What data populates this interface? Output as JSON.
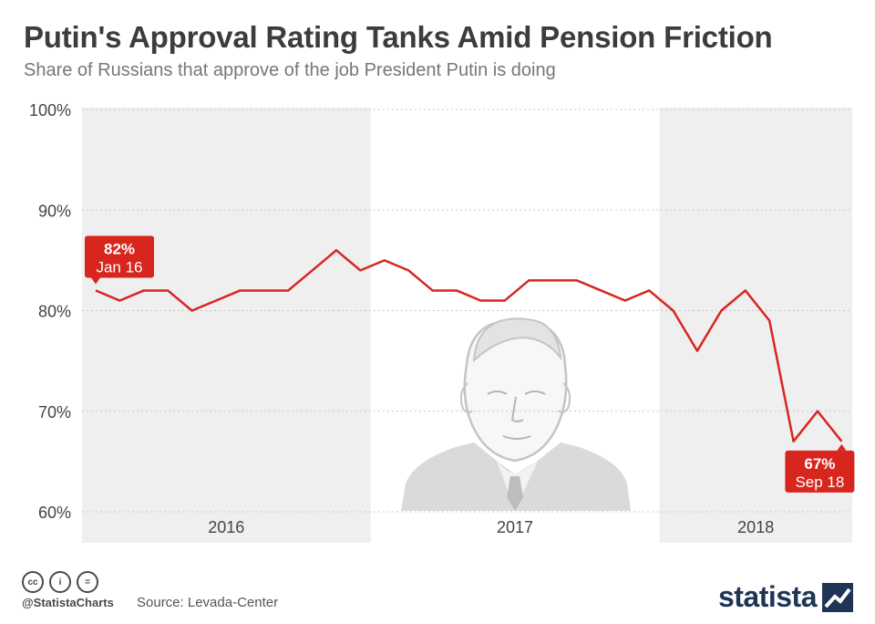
{
  "title": "Putin's Approval Rating Tanks Amid Pension Friction",
  "subtitle": "Share of Russians that approve of the job President Putin is doing",
  "chart_data": {
    "type": "line",
    "y_ticks": [
      "100%",
      "90%",
      "80%",
      "70%",
      "60%"
    ],
    "y_tick_values": [
      100,
      90,
      80,
      70,
      60
    ],
    "ylim": [
      60,
      100
    ],
    "year_labels": [
      "2016",
      "2017",
      "2018"
    ],
    "shaded_years": [
      "2016",
      "2018"
    ],
    "series": [
      {
        "color": "#d7261e",
        "values": [
          82,
          81,
          82,
          82,
          80,
          81,
          82,
          82,
          82,
          84,
          86,
          84,
          85,
          84,
          82,
          82,
          81,
          81,
          83,
          83,
          83,
          82,
          81,
          82,
          80,
          76,
          80,
          82,
          79,
          67,
          70,
          67
        ]
      }
    ],
    "points_per_year": 12,
    "first_month_index": 0,
    "annotations": [
      {
        "value": "82%",
        "date": "Jan 16",
        "point_index": 0
      },
      {
        "value": "67%",
        "date": "Sep 18",
        "point_index": 31
      }
    ],
    "grid": true
  },
  "footer": {
    "cc_icons": [
      "cc",
      "i",
      "="
    ],
    "handle": "@StatistaCharts",
    "source": "Source: Levada-Center",
    "brand": "statista"
  },
  "colors": {
    "line": "#d7261e",
    "label_bg": "#d7261e",
    "shade": "#efefef",
    "brand": "#1f3556"
  }
}
